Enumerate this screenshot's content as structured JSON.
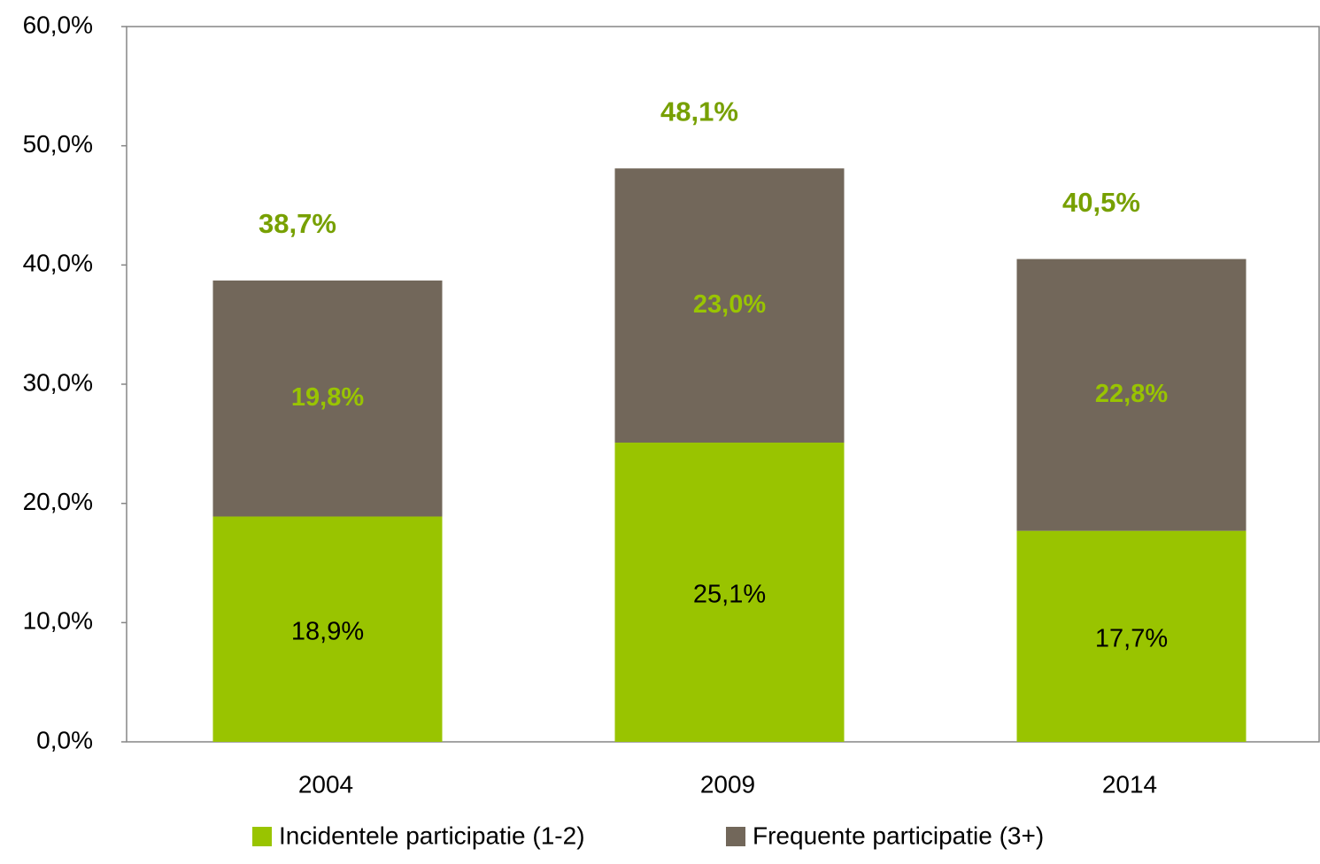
{
  "chart_data": {
    "type": "stacked_bar",
    "categories": [
      "2004",
      "2009",
      "2014"
    ],
    "series": [
      {
        "name": "Incidentele participatie (1-2)",
        "color": "#99c400",
        "values": [
          18.9,
          25.1,
          17.7
        ],
        "value_labels": [
          "18,9%",
          "25,1%",
          "17,7%"
        ]
      },
      {
        "name": "Frequente participatie (3+)",
        "color": "#72675a",
        "values": [
          19.8,
          23.0,
          22.8
        ],
        "value_labels": [
          "19,8%",
          "23,0%",
          "22,8%"
        ]
      }
    ],
    "totals": [
      38.7,
      48.1,
      40.5
    ],
    "total_labels": [
      "38,7%",
      "48,1%",
      "40,5%"
    ],
    "ylim": [
      0,
      60
    ],
    "yticks": [
      {
        "value": 0,
        "label": "0,0%"
      },
      {
        "value": 10,
        "label": "10,0%"
      },
      {
        "value": 20,
        "label": "20,0%"
      },
      {
        "value": 30,
        "label": "30,0%"
      },
      {
        "value": 40,
        "label": "40,0%"
      },
      {
        "value": 50,
        "label": "50,0%"
      },
      {
        "value": 60,
        "label": "60,0%"
      }
    ],
    "grid": false,
    "legend": "bottom"
  }
}
